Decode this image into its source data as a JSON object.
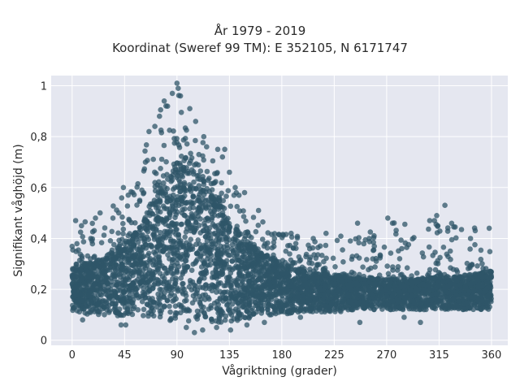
{
  "chart_data": {
    "type": "scatter",
    "title": "År 1979 - 2019",
    "subtitle": "Koordinat (Sweref 99 TM): E 352105, N 6171747",
    "xlabel": "Vågriktning (grader)",
    "ylabel": "Signifikant våghöjd (m)",
    "xlim": [
      -18,
      374
    ],
    "ylim": [
      -0.02,
      1.04
    ],
    "x_ticks": [
      0,
      45,
      90,
      135,
      180,
      225,
      270,
      315,
      360
    ],
    "y_ticks": [
      0,
      0.2,
      0.4,
      0.6,
      0.8,
      1
    ],
    "x_tick_labels": [
      "0",
      "45",
      "90",
      "135",
      "180",
      "225",
      "270",
      "315",
      "360"
    ],
    "y_tick_labels": [
      "0",
      "0,2",
      "0,4",
      "0,6",
      "0,8",
      "1"
    ],
    "grid": true,
    "marker_color": "#2f5568",
    "background_color": "#e5e7f0",
    "envelope": {
      "direction": [
        0,
        15,
        30,
        45,
        60,
        75,
        90,
        105,
        120,
        135,
        150,
        165,
        180,
        200,
        225,
        250,
        270,
        300,
        315,
        330,
        345,
        360
      ],
      "lower_dense": [
        0.11,
        0.1,
        0.1,
        0.09,
        0.09,
        0.08,
        0.07,
        0.07,
        0.07,
        0.07,
        0.08,
        0.09,
        0.1,
        0.11,
        0.11,
        0.12,
        0.12,
        0.12,
        0.12,
        0.12,
        0.12,
        0.12
      ],
      "upper_dense": [
        0.28,
        0.3,
        0.33,
        0.38,
        0.46,
        0.6,
        0.7,
        0.66,
        0.57,
        0.47,
        0.38,
        0.33,
        0.3,
        0.27,
        0.25,
        0.24,
        0.24,
        0.24,
        0.25,
        0.25,
        0.26,
        0.27
      ],
      "upper_outlier": [
        0.47,
        0.48,
        0.5,
        0.6,
        0.76,
        0.9,
        1.0,
        0.9,
        0.75,
        0.63,
        0.56,
        0.47,
        0.43,
        0.4,
        0.42,
        0.45,
        0.47,
        0.45,
        0.5,
        0.47,
        0.45,
        0.44
      ]
    },
    "outliers": [
      {
        "x": 90,
        "y": 1.01
      },
      {
        "x": 91,
        "y": 0.99
      },
      {
        "x": 86,
        "y": 0.97
      },
      {
        "x": 93,
        "y": 0.96
      },
      {
        "x": 79,
        "y": 0.94
      },
      {
        "x": 101,
        "y": 0.91
      },
      {
        "x": 75,
        "y": 0.88
      },
      {
        "x": 106,
        "y": 0.86
      },
      {
        "x": 71,
        "y": 0.84
      },
      {
        "x": 66,
        "y": 0.82
      },
      {
        "x": 113,
        "y": 0.8
      },
      {
        "x": 125,
        "y": 0.75
      },
      {
        "x": 131,
        "y": 0.75
      },
      {
        "x": 129,
        "y": 0.72
      },
      {
        "x": 135,
        "y": 0.66
      },
      {
        "x": 140,
        "y": 0.6
      },
      {
        "x": 148,
        "y": 0.58
      },
      {
        "x": 160,
        "y": 0.51
      },
      {
        "x": 44,
        "y": 0.6
      },
      {
        "x": 52,
        "y": 0.58
      },
      {
        "x": 58,
        "y": 0.55
      },
      {
        "x": 40,
        "y": 0.5
      },
      {
        "x": 35,
        "y": 0.48
      },
      {
        "x": 24,
        "y": 0.5
      },
      {
        "x": 20,
        "y": 0.48
      },
      {
        "x": 3,
        "y": 0.47
      },
      {
        "x": 8,
        "y": 0.45
      },
      {
        "x": 16,
        "y": 0.4
      },
      {
        "x": 188,
        "y": 0.42
      },
      {
        "x": 192,
        "y": 0.38
      },
      {
        "x": 207,
        "y": 0.4
      },
      {
        "x": 213,
        "y": 0.37
      },
      {
        "x": 218,
        "y": 0.42
      },
      {
        "x": 245,
        "y": 0.46
      },
      {
        "x": 255,
        "y": 0.4
      },
      {
        "x": 271,
        "y": 0.48
      },
      {
        "x": 275,
        "y": 0.46
      },
      {
        "x": 283,
        "y": 0.36
      },
      {
        "x": 307,
        "y": 0.47
      },
      {
        "x": 311,
        "y": 0.47
      },
      {
        "x": 313,
        "y": 0.49
      },
      {
        "x": 320,
        "y": 0.53
      },
      {
        "x": 342,
        "y": 0.4
      },
      {
        "x": 358,
        "y": 0.44
      },
      {
        "x": 9,
        "y": 0.08
      },
      {
        "x": 42,
        "y": 0.06
      },
      {
        "x": 46,
        "y": 0.06
      },
      {
        "x": 98,
        "y": 0.05
      },
      {
        "x": 105,
        "y": 0.03
      },
      {
        "x": 112,
        "y": 0.04
      },
      {
        "x": 124,
        "y": 0.05
      },
      {
        "x": 136,
        "y": 0.04
      },
      {
        "x": 150,
        "y": 0.06
      },
      {
        "x": 165,
        "y": 0.07
      },
      {
        "x": 196,
        "y": 0.09
      },
      {
        "x": 247,
        "y": 0.07
      },
      {
        "x": 299,
        "y": 0.07
      },
      {
        "x": 285,
        "y": 0.09
      }
    ]
  }
}
